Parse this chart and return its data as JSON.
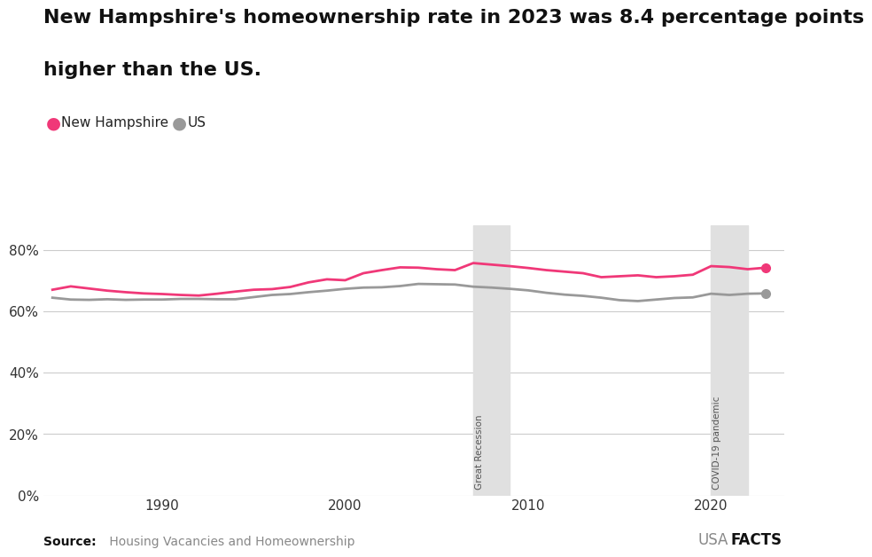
{
  "title_line1": "New Hampshire's homeownership rate in 2023 was 8.4 percentage points",
  "title_line2": "higher than the US.",
  "title_fontsize": 16,
  "source_bold": "Source:",
  "source_text": " Housing Vacancies and Homeownership",
  "nh_label": "New Hampshire",
  "us_label": "US",
  "nh_color": "#F03878",
  "us_color": "#999999",
  "recession_color": "#E0E0E0",
  "background_color": "#FFFFFF",
  "years": [
    1984,
    1985,
    1986,
    1987,
    1988,
    1989,
    1990,
    1991,
    1992,
    1993,
    1994,
    1995,
    1996,
    1997,
    1998,
    1999,
    2000,
    2001,
    2002,
    2003,
    2004,
    2005,
    2006,
    2007,
    2008,
    2009,
    2010,
    2011,
    2012,
    2013,
    2014,
    2015,
    2016,
    2017,
    2018,
    2019,
    2020,
    2021,
    2022,
    2023
  ],
  "nh_values": [
    67.1,
    68.2,
    67.5,
    66.8,
    66.3,
    65.9,
    65.7,
    65.4,
    65.2,
    65.8,
    66.5,
    67.1,
    67.3,
    68.0,
    69.5,
    70.5,
    70.2,
    72.5,
    73.5,
    74.4,
    74.3,
    73.8,
    73.5,
    75.8,
    75.3,
    74.8,
    74.2,
    73.5,
    73.0,
    72.5,
    71.2,
    71.5,
    71.8,
    71.2,
    71.5,
    72.0,
    74.8,
    74.5,
    73.8,
    74.3
  ],
  "us_values": [
    64.5,
    63.9,
    63.8,
    64.0,
    63.8,
    63.9,
    63.9,
    64.1,
    64.1,
    64.0,
    64.0,
    64.7,
    65.4,
    65.7,
    66.3,
    66.8,
    67.4,
    67.8,
    67.9,
    68.3,
    69.0,
    68.9,
    68.8,
    68.1,
    67.8,
    67.4,
    66.9,
    66.1,
    65.5,
    65.1,
    64.5,
    63.7,
    63.4,
    63.9,
    64.4,
    64.6,
    65.8,
    65.4,
    65.8,
    65.9
  ],
  "ylim": [
    0,
    88
  ],
  "yticks": [
    0,
    20,
    40,
    60,
    80
  ],
  "xlim": [
    1983.5,
    2024
  ],
  "xticks": [
    1990,
    2000,
    2010,
    2020
  ],
  "recession_start": 2007,
  "recession_end": 2009,
  "covid_start": 2020,
  "covid_end": 2022,
  "great_recession_label": "Great Recession",
  "covid_label": "COVID-19 pandemic",
  "grid_color": "#CCCCCC",
  "line_width": 2.0,
  "marker_size": 7,
  "source_text_color": "#888888",
  "usafacts_usa_color": "#888888",
  "usafacts_facts_color": "#111111"
}
